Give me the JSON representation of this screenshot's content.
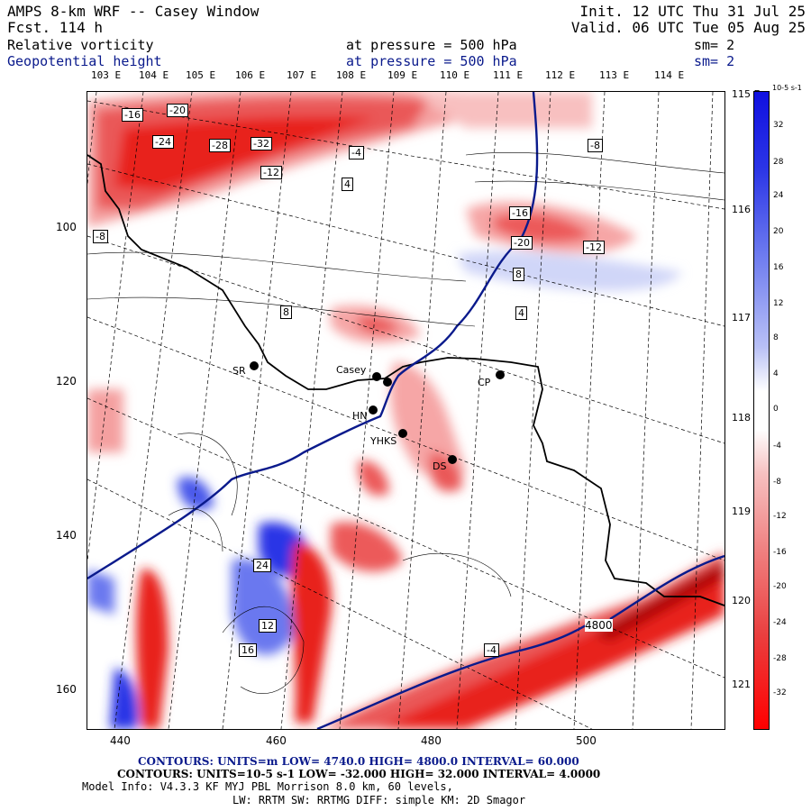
{
  "header": {
    "title": "AMPS 8-km WRF -- Casey Window",
    "forecast": "Fcst.  114 h",
    "init": "Init. 12 UTC Thu 31 Jul 25",
    "valid": "Valid. 06 UTC Tue 05 Aug 25",
    "field1": "Relative vorticity",
    "field1_level": "at pressure =  500 hPa",
    "field1_sm": "sm= 2",
    "field2": "Geopotential height",
    "field2_level": "at pressure =  500 hPa",
    "field2_sm": "sm= 2"
  },
  "longitudes": [
    "103 E",
    "104 E",
    "105 E",
    "106 E",
    "107 E",
    "108 E",
    "109 E",
    "110 E",
    "111 E",
    "112 E",
    "113 E",
    "114 E"
  ],
  "latitudes_right": [
    "115 E",
    "116 E",
    "117 E",
    "118 E",
    "119 E",
    "120 E",
    "121 E"
  ],
  "y_axis": [
    "100",
    "120",
    "140",
    "160"
  ],
  "x_axis": [
    "440",
    "460",
    "480",
    "500"
  ],
  "colorbar": {
    "unit": "10-5 s-1",
    "ticks": [
      "32",
      "28",
      "24",
      "20",
      "16",
      "12",
      "8",
      "4",
      "0",
      "-4",
      "-8",
      "-12",
      "-16",
      "-20",
      "-24",
      "-28",
      "-32"
    ]
  },
  "stations": [
    {
      "name": "SR"
    },
    {
      "name": "Casey"
    },
    {
      "name": "CP"
    },
    {
      "name": "HN"
    },
    {
      "name": "YHKS"
    },
    {
      "name": "DS"
    }
  ],
  "contour_labels": [
    "-16",
    "-20",
    "-24",
    "-28",
    "-32",
    "-12",
    "-8",
    "-4",
    "4",
    "8",
    "12",
    "16",
    "24",
    "-16",
    "-20",
    "-12",
    "-8",
    "4",
    "-4",
    "8",
    "4800"
  ],
  "footer": {
    "line1": "CONTOURS:  UNITS=m  LOW=  4740.0      HIGH=  4800.0      INTERVAL=  60.000",
    "line2": "CONTOURS:  UNITS=10-5 s-1  LOW= -32.000      HIGH=  32.000      INTERVAL=  4.0000",
    "line3": "Model Info: V4.3.3   KF      MYJ PBL  Morrison          8.0 km,  60 levels,",
    "line4": "LW: RRTM SW: RRTMG   DIFF: simple KM: 2D Smagor"
  },
  "colors": {
    "positive": "#2b35e6",
    "negative": "#e8231f",
    "height_line": "#0a1a8c"
  }
}
